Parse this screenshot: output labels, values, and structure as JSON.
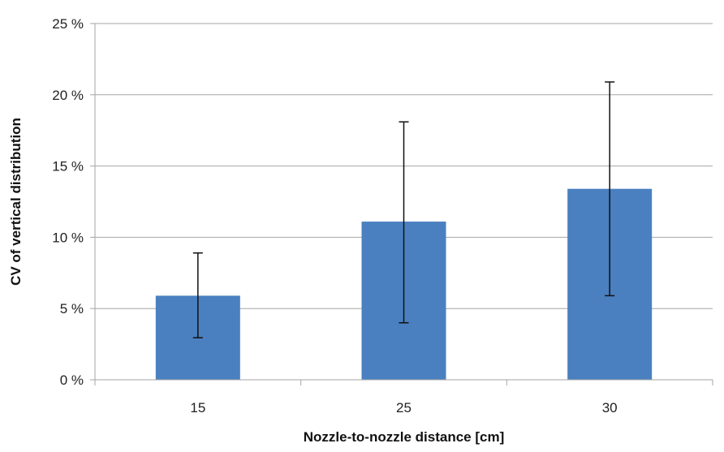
{
  "chart_data": {
    "type": "bar",
    "title": "",
    "xlabel": "Nozzle-to-nozzle distance [cm]",
    "ylabel": "CV of vertical distribution",
    "categories": [
      "15",
      "25",
      "30"
    ],
    "series": [
      {
        "values": [
          5.9,
          11.1,
          13.4
        ],
        "error_low": [
          2.95,
          4.0,
          5.9
        ],
        "error_high": [
          8.9,
          18.1,
          20.9
        ]
      }
    ],
    "ylim": [
      0,
      25
    ],
    "yticks": [
      0,
      5,
      10,
      15,
      20,
      25
    ],
    "ytick_labels": [
      "0 %",
      "5 %",
      "10 %",
      "15 %",
      "20 %",
      "25 %"
    ],
    "grid": "horizontal",
    "legend": "none",
    "colors": {
      "bar": "#4a80bf",
      "grid": "#a6a6a6",
      "error_bar": "#111111"
    }
  }
}
